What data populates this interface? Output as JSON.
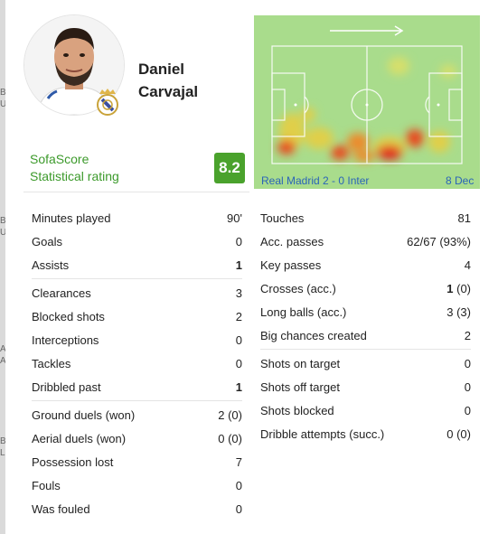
{
  "player": {
    "first_name": "Daniel",
    "last_name": "Carvajal",
    "photo_icon": "player-photo",
    "crest_icon": "real-madrid-crest"
  },
  "rating": {
    "brand": "SofaScore",
    "label": "Statistical rating",
    "value": "8.2",
    "badge_color": "#4aa22c"
  },
  "heatmap": {
    "match": "Real Madrid 2 - 0 Inter",
    "date": "8 Dec",
    "direction_icon": "attack-direction-arrow",
    "pitch_color": "#a9dc8c"
  },
  "stats_left": [
    [
      {
        "label": "Minutes played",
        "value": "90'",
        "bold": ""
      },
      {
        "label": "Goals",
        "value": "0",
        "bold": ""
      },
      {
        "label": "Assists",
        "value": "",
        "bold": "1"
      }
    ],
    [
      {
        "label": "Clearances",
        "value": "3",
        "bold": ""
      },
      {
        "label": "Blocked shots",
        "value": "2",
        "bold": ""
      },
      {
        "label": "Interceptions",
        "value": "0",
        "bold": ""
      },
      {
        "label": "Tackles",
        "value": "0",
        "bold": ""
      },
      {
        "label": "Dribbled past",
        "value": "",
        "bold": "1"
      }
    ],
    [
      {
        "label": "Ground duels (won)",
        "value": "2 (0)",
        "bold": ""
      },
      {
        "label": "Aerial duels (won)",
        "value": "0 (0)",
        "bold": ""
      },
      {
        "label": "Possession lost",
        "value": "7",
        "bold": ""
      },
      {
        "label": "Fouls",
        "value": "0",
        "bold": ""
      },
      {
        "label": "Was fouled",
        "value": "0",
        "bold": ""
      }
    ]
  ],
  "stats_right": [
    [
      {
        "label": "Touches",
        "value": "81",
        "bold": ""
      },
      {
        "label": "Acc. passes",
        "value": "62/67 (93%)",
        "bold": ""
      },
      {
        "label": "Key passes",
        "value": "4",
        "bold": ""
      },
      {
        "label": "Crosses (acc.)",
        "value": " (0)",
        "bold": "1"
      },
      {
        "label": "Long balls (acc.)",
        "value": "3 (3)",
        "bold": ""
      },
      {
        "label": "Big chances created",
        "value": "2",
        "bold": ""
      }
    ],
    [
      {
        "label": "Shots on target",
        "value": "0",
        "bold": ""
      },
      {
        "label": "Shots off target",
        "value": "0",
        "bold": ""
      },
      {
        "label": "Shots blocked",
        "value": "0",
        "bold": ""
      },
      {
        "label": "Dribble attempts (succ.)",
        "value": "0 (0)",
        "bold": ""
      }
    ]
  ],
  "edge_letters": [
    "B",
    "U",
    "B",
    "U",
    "A",
    "A",
    "B",
    "L"
  ]
}
